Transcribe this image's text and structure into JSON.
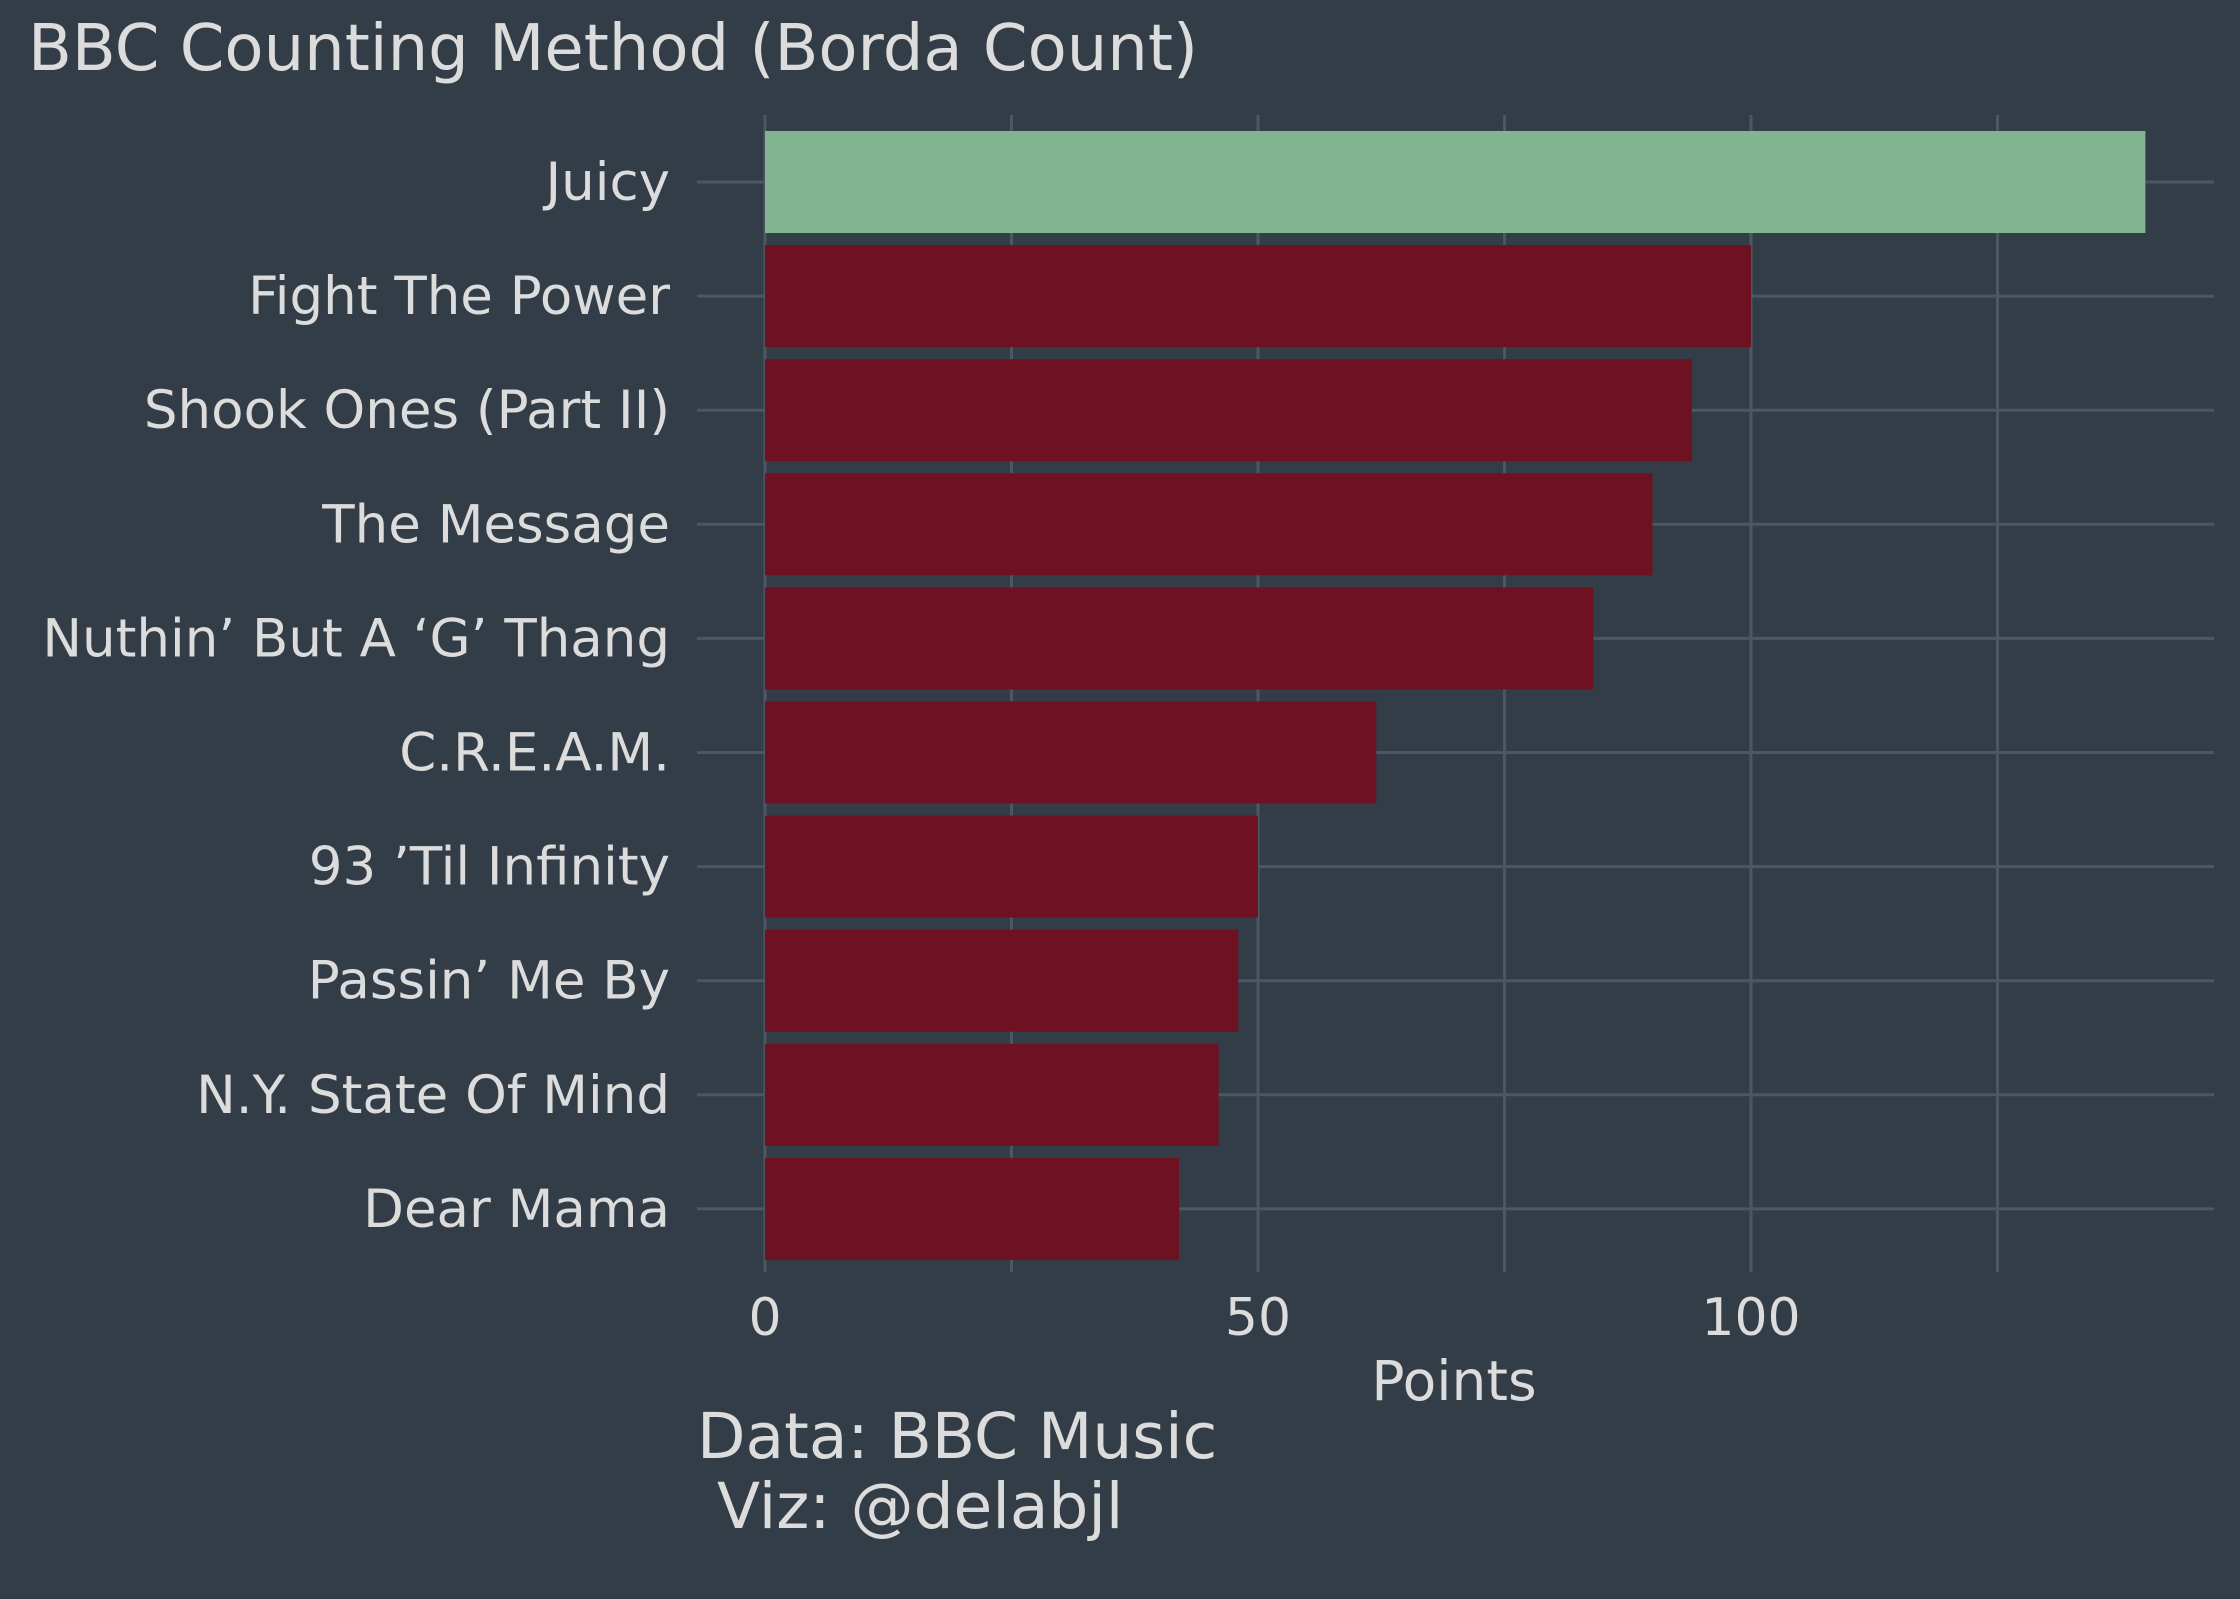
{
  "chart_data": {
    "type": "bar",
    "orientation": "horizontal",
    "title": "BBC Counting Method (Borda Count)",
    "xlabel": "Points",
    "ylabel": "",
    "categories": [
      "Juicy",
      "Fight The Power",
      "Shook Ones (Part II)",
      "The Message",
      "Nuthin’ But A ‘G’ Thang",
      "C.R.E.A.M.",
      "93 ’Til Infinity",
      "Passin’ Me By",
      "N.Y. State Of Mind",
      "Dear Mama"
    ],
    "values": [
      140,
      100,
      94,
      90,
      84,
      62,
      50,
      48,
      46,
      42
    ],
    "highlight_category": "Juicy",
    "xlim": [
      0,
      147
    ],
    "xticks": [
      0,
      50,
      100
    ],
    "xtick_labels": [
      "0",
      "50",
      "100"
    ],
    "grid": true,
    "legend": "none",
    "caption": [
      "Data: BBC Music",
      " Viz: @delabjl"
    ],
    "colors": {
      "background": "#333d48",
      "grid": "#4b5764",
      "bar": "#6e1222",
      "highlight": "#83b593",
      "text": "#dcdcdc"
    }
  }
}
